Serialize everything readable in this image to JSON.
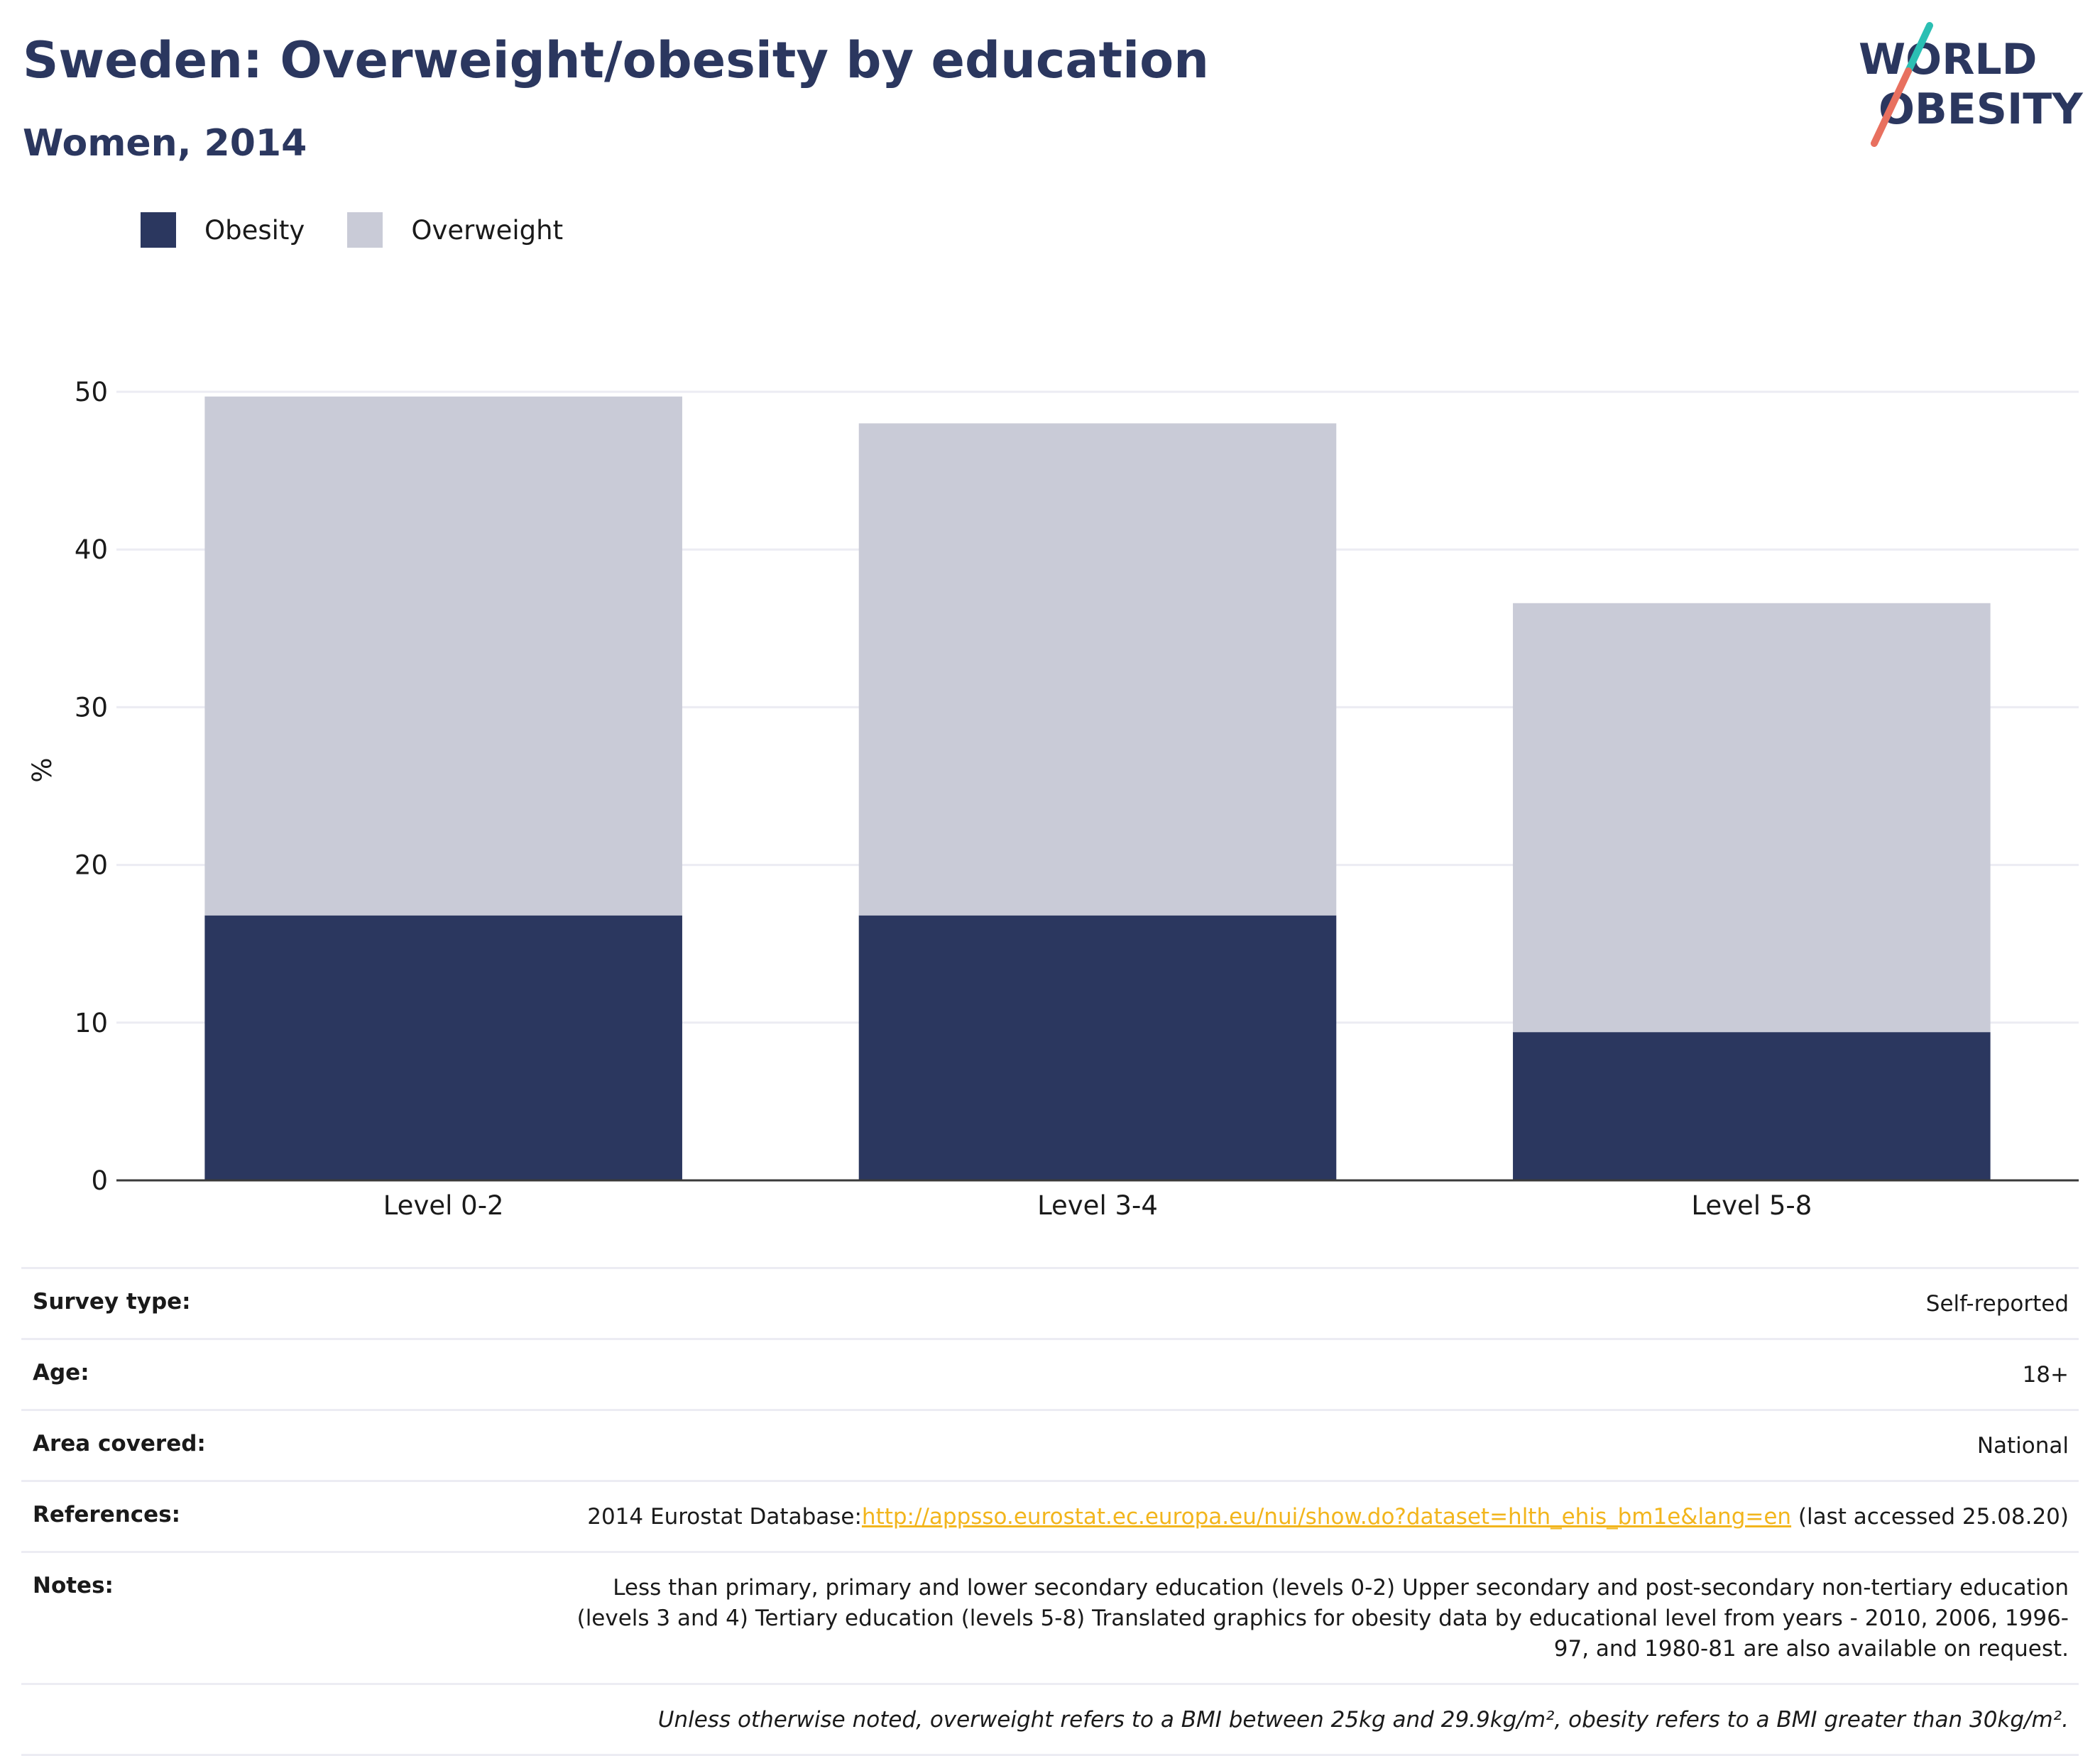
{
  "header": {
    "title": "Sweden: Overweight/obesity by education",
    "subtitle": "Women, 2014",
    "logo_line1": "WORLD",
    "logo_line2": "OBESITY"
  },
  "colors": {
    "obesity": "#2b375f",
    "overweight": "#c9cbd7",
    "accent_teal": "#2bbfb3",
    "accent_coral": "#e8705f",
    "link": "#f2b51c"
  },
  "chart_data": {
    "type": "bar",
    "stacked": true,
    "categories": [
      "Level 0-2",
      "Level 3-4",
      "Level 5-8"
    ],
    "series": [
      {
        "name": "Obesity",
        "values": [
          16.8,
          16.8,
          9.4
        ]
      },
      {
        "name": "Overweight",
        "values": [
          32.9,
          31.2,
          27.2
        ]
      }
    ],
    "ylabel": "%",
    "ylim": [
      0,
      50
    ],
    "yticks": [
      0,
      10,
      20,
      30,
      40,
      50
    ],
    "grid": true,
    "legend_position": "top-left"
  },
  "meta": {
    "rows": [
      {
        "label": "Survey type:",
        "value": "Self-reported"
      },
      {
        "label": "Age:",
        "value": "18+"
      },
      {
        "label": "Area covered:",
        "value": "National"
      }
    ],
    "references_label": "References:",
    "references_prefix": "2014 Eurostat Database:",
    "references_link": "http://appsso.eurostat.ec.europa.eu/nui/show.do?dataset=hlth_ehis_bm1e&lang=en",
    "references_suffix": " (last accessed 25.08.20)",
    "notes_label": "Notes:",
    "notes_value": "Less than primary, primary and lower secondary education (levels 0-2) Upper secondary and post-secondary non-tertiary education (levels 3 and 4) Tertiary education (levels 5-8) Translated graphics for obesity data by educational level from years - 2010, 2006, 1996-97, and 1980-81 are also available on request.",
    "footnote": "Unless otherwise noted, overweight refers to a BMI between 25kg and 29.9kg/m², obesity refers to a BMI greater than 30kg/m²."
  }
}
